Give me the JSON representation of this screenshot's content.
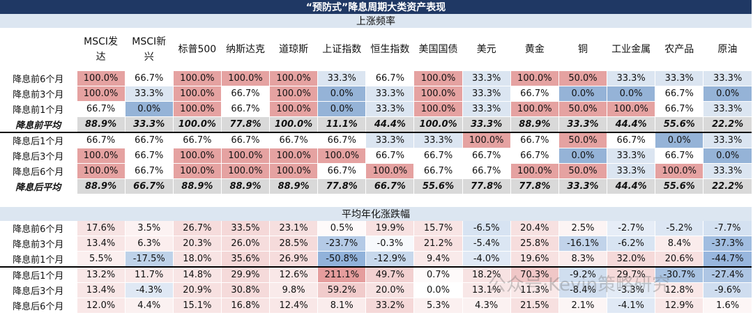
{
  "title": "“预防式”降息周期大类资产表现",
  "watermark": "公众号·Kevin策略研究",
  "columns": [
    "MSCI发达",
    "MSCI新兴",
    "标普500",
    "纳斯达克",
    "道琼斯",
    "上证指数",
    "恒生指数",
    "美国国债",
    "美元",
    "黄金",
    "铜",
    "工业金属",
    "农产品",
    "原油"
  ],
  "sections": [
    {
      "header": "上涨频率",
      "groups": [
        {
          "rows": [
            {
              "label": "降息前6个月",
              "cells": [
                "100.0%",
                "66.7%",
                "100.0%",
                "100.0%",
                "100.0%",
                "33.3%",
                "66.7%",
                "100.0%",
                "33.3%",
                "100.0%",
                "50.0%",
                "33.3%",
                "33.3%",
                "33.3%"
              ]
            },
            {
              "label": "降息前3个月",
              "cells": [
                "100.0%",
                "33.3%",
                "100.0%",
                "66.7%",
                "100.0%",
                "0.0%",
                "33.3%",
                "100.0%",
                "33.3%",
                "66.7%",
                "0.0%",
                "0.0%",
                "66.7%",
                "0.0%"
              ]
            },
            {
              "label": "降息前1个月",
              "cells": [
                "66.7%",
                "0.0%",
                "100.0%",
                "66.7%",
                "100.0%",
                "0.0%",
                "33.3%",
                "100.0%",
                "33.3%",
                "100.0%",
                "50.0%",
                "100.0%",
                "66.7%",
                "33.3%"
              ]
            }
          ],
          "average": {
            "label": "降息前平均",
            "cells": [
              "88.9%",
              "33.3%",
              "100.0%",
              "77.8%",
              "100.0%",
              "11.1%",
              "44.4%",
              "100.0%",
              "33.3%",
              "88.9%",
              "33.3%",
              "44.4%",
              "55.6%",
              "22.2%"
            ]
          }
        },
        {
          "rows": [
            {
              "label": "降息后1个月",
              "cells": [
                "66.7%",
                "66.7%",
                "66.7%",
                "66.7%",
                "66.7%",
                "66.7%",
                "33.3%",
                "33.3%",
                "100.0%",
                "66.7%",
                "50.0%",
                "66.7%",
                "0.0%",
                "33.3%"
              ]
            },
            {
              "label": "降息后3个月",
              "cells": [
                "100.0%",
                "66.7%",
                "100.0%",
                "100.0%",
                "100.0%",
                "100.0%",
                "66.7%",
                "66.7%",
                "66.7%",
                "66.7%",
                "0.0%",
                "33.3%",
                "66.7%",
                "0.0%"
              ]
            },
            {
              "label": "降息后6个月",
              "cells": [
                "100.0%",
                "66.7%",
                "100.0%",
                "100.0%",
                "100.0%",
                "66.7%",
                "100.0%",
                "66.7%",
                "66.7%",
                "100.0%",
                "50.0%",
                "33.3%",
                "100.0%",
                "33.3%"
              ]
            }
          ],
          "average": {
            "label": "降息后平均",
            "cells": [
              "88.9%",
              "66.7%",
              "88.9%",
              "88.9%",
              "88.9%",
              "77.8%",
              "66.7%",
              "55.6%",
              "77.8%",
              "77.8%",
              "33.3%",
              "44.4%",
              "55.6%",
              "22.2%"
            ]
          }
        }
      ]
    },
    {
      "header": "平均年化涨跌幅",
      "groups": [
        {
          "rows": [
            {
              "label": "降息前6个月",
              "cells": [
                "17.6%",
                "3.5%",
                "26.7%",
                "33.5%",
                "23.1%",
                "0.5%",
                "19.9%",
                "15.7%",
                "-6.5%",
                "20.4%",
                "2.5%",
                "-2.7%",
                "-5.2%",
                "-7.7%"
              ]
            },
            {
              "label": "降息前3个月",
              "cells": [
                "13.4%",
                "6.3%",
                "20.3%",
                "26.0%",
                "28.5%",
                "-23.7%",
                "-0.3%",
                "21.2%",
                "-5.4%",
                "25.8%",
                "-16.1%",
                "-6.2%",
                "8.4%",
                "-37.3%"
              ]
            },
            {
              "label": "降息前1个月",
              "cells": [
                "5.5%",
                "-17.5%",
                "18.0%",
                "35.6%",
                "26.9%",
                "-50.8%",
                "-12.9%",
                "9.4%",
                "-4.0%",
                "19.6%",
                "8.3%",
                "32.0%",
                "20.6%",
                "-44.7%"
              ]
            }
          ]
        },
        {
          "rows": [
            {
              "label": "降息后1个月",
              "cells": [
                "13.2%",
                "11.7%",
                "14.8%",
                "29.9%",
                "12.6%",
                "211.1%",
                "49.7%",
                "0.7%",
                "18.2%",
                "70.3%",
                "-9.2%",
                "29.7%",
                "-30.7%",
                "-27.4%"
              ]
            },
            {
              "label": "降息后3个月",
              "cells": [
                "13.4%",
                "-4.3%",
                "20.9%",
                "30.8%",
                "9.8%",
                "59.2%",
                "20.0%",
                "0.0%",
                "13.1%",
                "11.3%",
                "-8.4%",
                "-3.3%",
                "12.8%",
                "-9.6%"
              ]
            },
            {
              "label": "降息后6个月",
              "cells": [
                "12.0%",
                "4.4%",
                "15.1%",
                "16.8%",
                "12.4%",
                "8.1%",
                "33.2%",
                "5.3%",
                "4.3%",
                "21.5%",
                "2.1%",
                "-4.1%",
                "12.9%",
                "1.6%"
              ]
            }
          ]
        }
      ]
    }
  ]
}
